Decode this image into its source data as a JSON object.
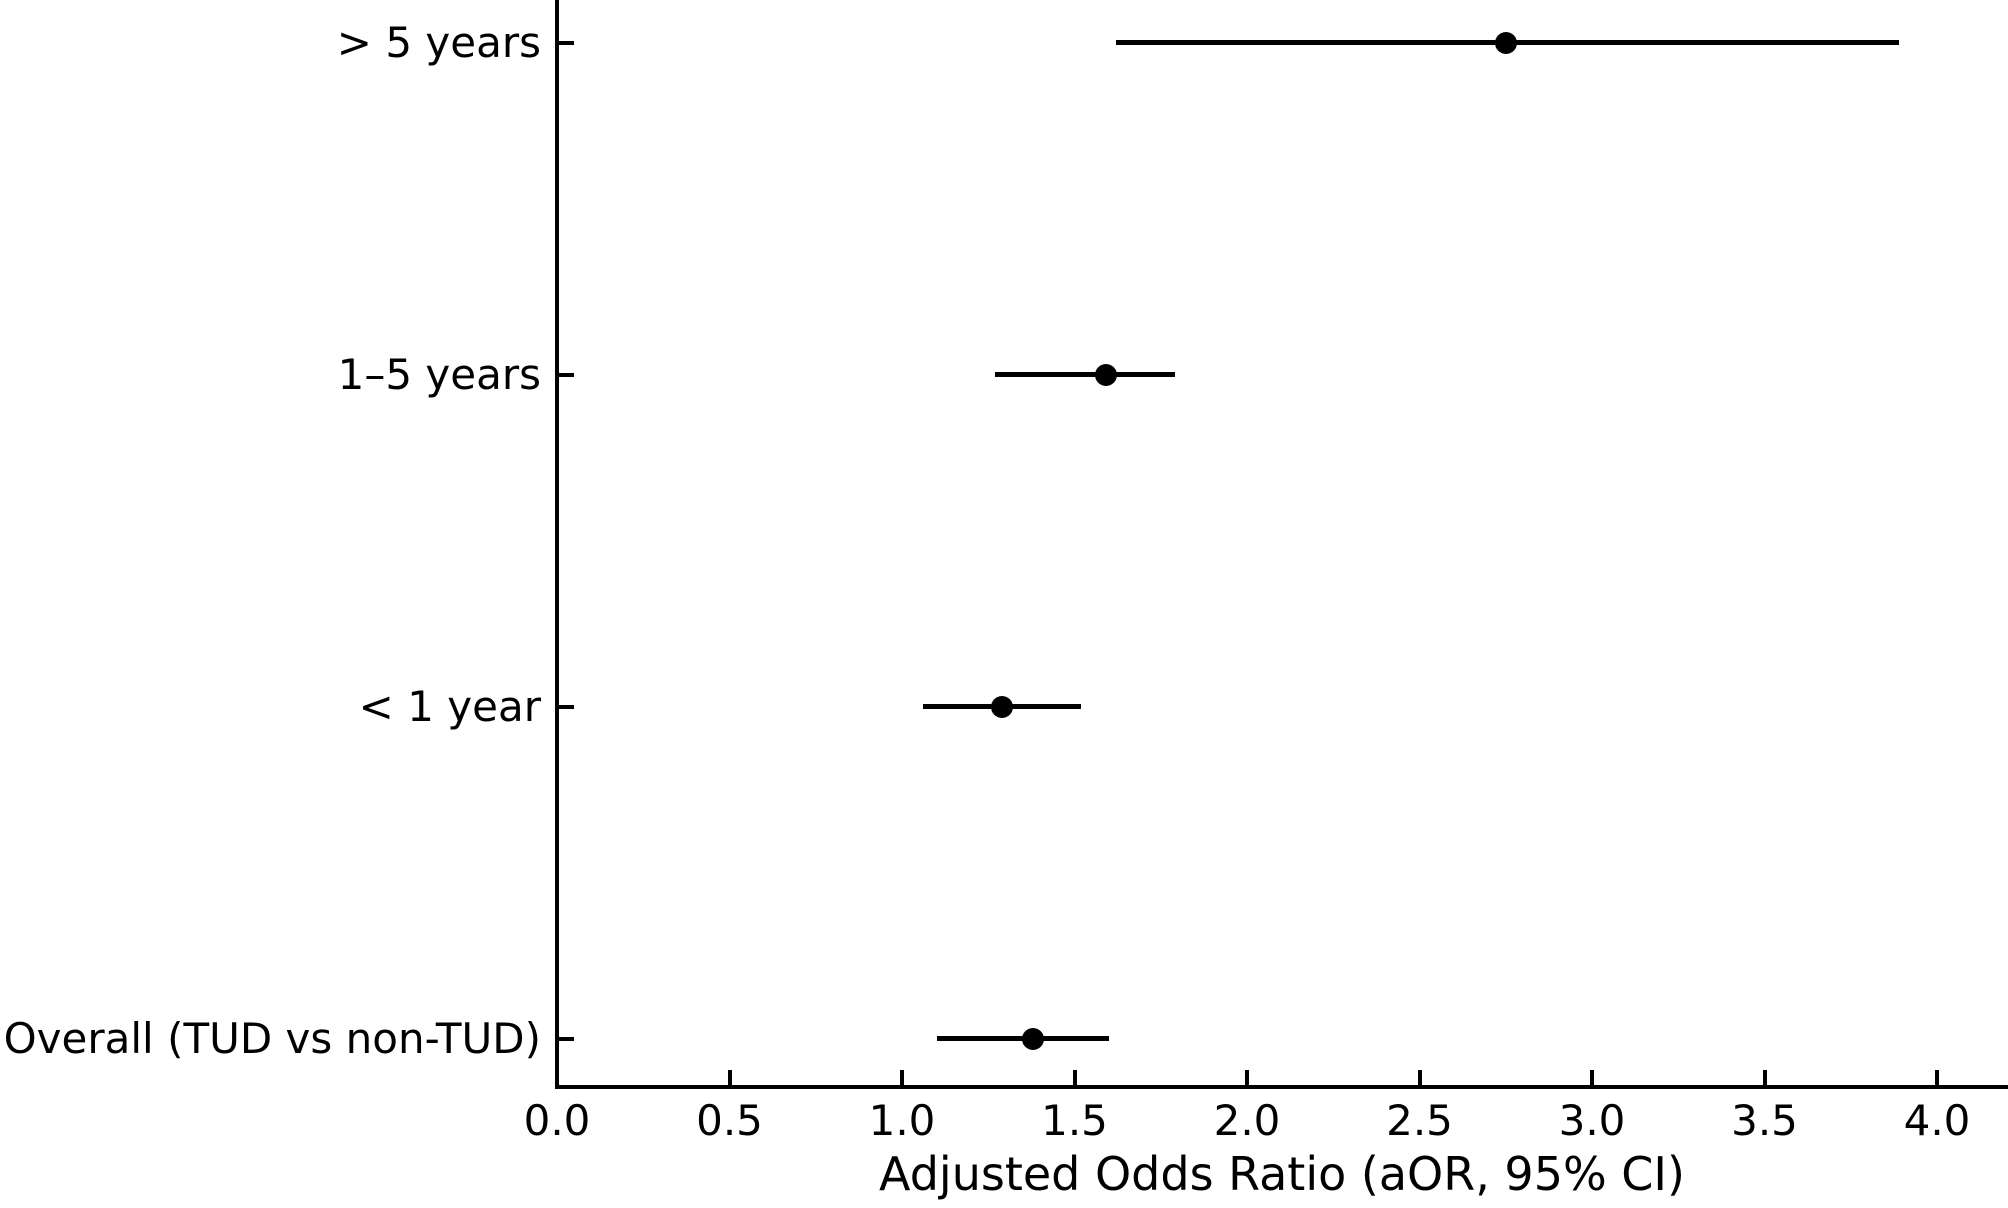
{
  "figure": {
    "background_color": "#ffffff",
    "foreground_color": "#000000"
  },
  "chart_data": {
    "type": "scatter",
    "subtype": "horizontal-forest-plot-with-95ci-error-bars",
    "title": "",
    "xlabel": "Adjusted Odds Ratio (aOR, 95% CI)",
    "ylabel": "",
    "xlim": [
      0.0,
      4.2
    ],
    "grid": false,
    "legend_position": "none",
    "marker": "filled-circle",
    "series_color": "#000000",
    "xticks": [
      "0.0",
      "0.5",
      "1.0",
      "1.5",
      "2.0",
      "2.5",
      "3.0",
      "3.5",
      "4.0"
    ],
    "rows": [
      {
        "label": "> 5 years",
        "aOR": 2.75,
        "ci_low": 1.62,
        "ci_high": 3.89
      },
      {
        "label": "1–5 years",
        "aOR": 1.59,
        "ci_low": 1.27,
        "ci_high": 1.79
      },
      {
        "label": "< 1 year",
        "aOR": 1.29,
        "ci_low": 1.06,
        "ci_high": 1.52
      },
      {
        "label": "Overall (TUD vs non-TUD)",
        "aOR": 1.38,
        "ci_low": 1.1,
        "ci_high": 1.6
      }
    ]
  }
}
